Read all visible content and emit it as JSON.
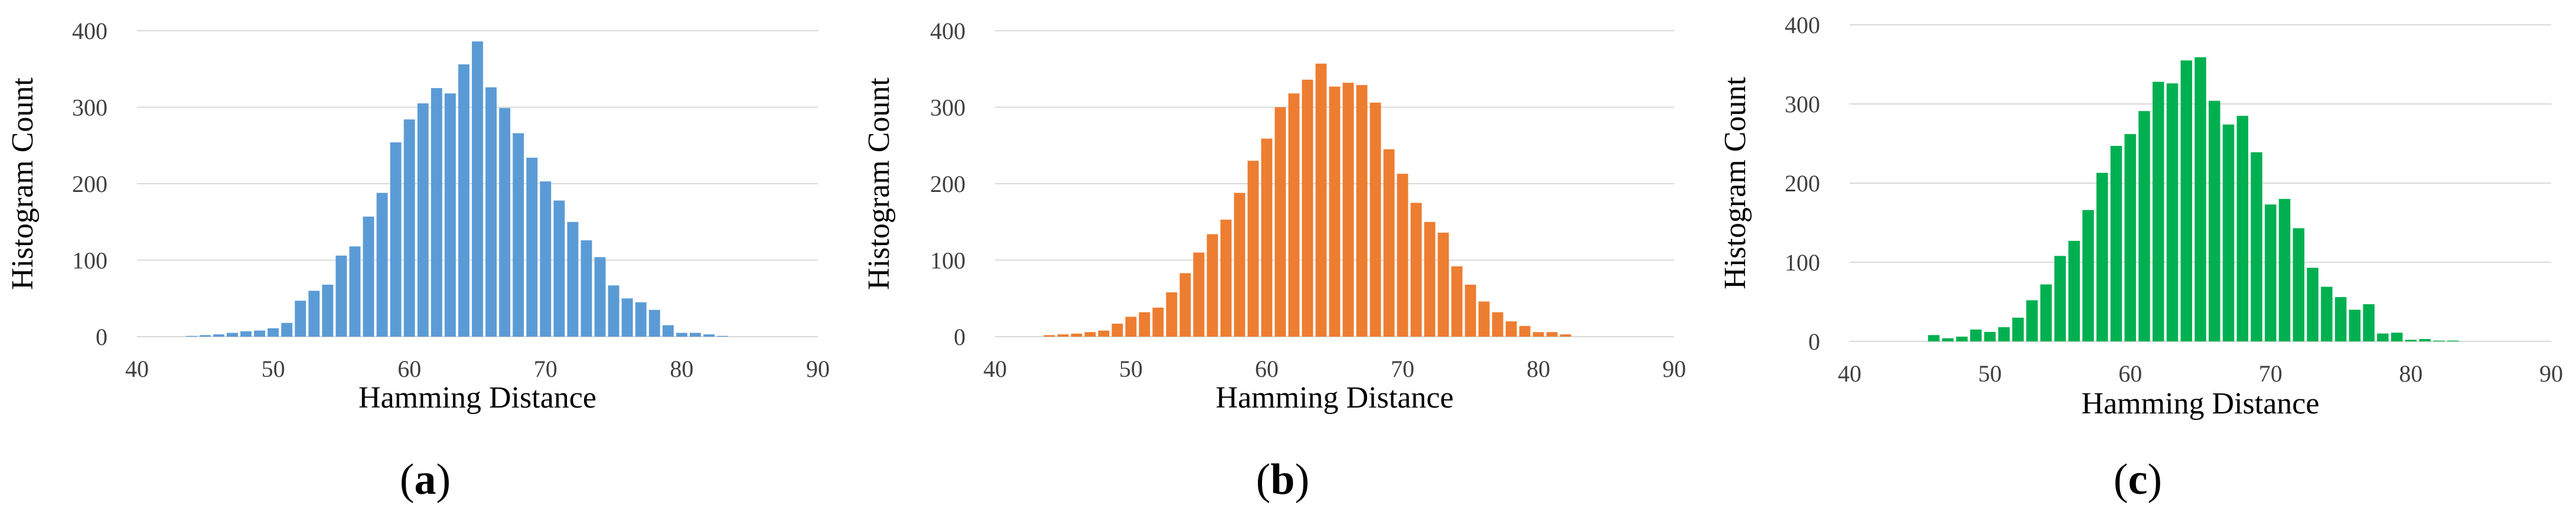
{
  "chart_data": [
    {
      "type": "bar",
      "panel_label": "a",
      "xlabel": "Hamming Distance",
      "ylabel": "Histogram Count",
      "xlim": [
        40,
        90
      ],
      "ylim": [
        0,
        400
      ],
      "xticks": [
        40,
        50,
        60,
        70,
        80,
        90
      ],
      "yticks": [
        0,
        100,
        200,
        300,
        400
      ],
      "grid": true,
      "color": "#5B9BD5",
      "x": [
        44,
        45,
        46,
        47,
        48,
        49,
        50,
        51,
        52,
        53,
        54,
        55,
        56,
        57,
        58,
        59,
        60,
        61,
        62,
        63,
        64,
        65,
        66,
        67,
        68,
        69,
        70,
        71,
        72,
        73,
        74,
        75,
        76,
        77,
        78,
        79,
        80,
        81,
        82,
        83
      ],
      "values": [
        1,
        2,
        3,
        5,
        7,
        8,
        11,
        18,
        47,
        60,
        68,
        106,
        118,
        157,
        188,
        254,
        284,
        305,
        325,
        318,
        356,
        386,
        326,
        299,
        266,
        234,
        203,
        178,
        150,
        126,
        104,
        67,
        50,
        45,
        35,
        15,
        5,
        5,
        3,
        1
      ]
    },
    {
      "type": "bar",
      "panel_label": "b",
      "xlabel": "Hamming Distance",
      "ylabel": "Histogram Count",
      "xlim": [
        40,
        90
      ],
      "ylim": [
        0,
        400
      ],
      "xticks": [
        40,
        50,
        60,
        70,
        80,
        90
      ],
      "yticks": [
        0,
        100,
        200,
        300,
        400
      ],
      "grid": true,
      "color": "#ED7D31",
      "x": [
        44,
        45,
        46,
        47,
        48,
        49,
        50,
        51,
        52,
        53,
        54,
        55,
        56,
        57,
        58,
        59,
        60,
        61,
        62,
        63,
        64,
        65,
        66,
        67,
        68,
        69,
        70,
        71,
        72,
        73,
        74,
        75,
        76,
        77,
        78,
        79,
        80,
        81,
        82
      ],
      "values": [
        2,
        3,
        4,
        6,
        8,
        17,
        26,
        32,
        38,
        58,
        83,
        110,
        134,
        153,
        188,
        230,
        259,
        300,
        318,
        336,
        357,
        327,
        332,
        329,
        306,
        245,
        213,
        175,
        150,
        136,
        92,
        68,
        46,
        32,
        20,
        14,
        6,
        6,
        3
      ]
    },
    {
      "type": "bar",
      "panel_label": "c",
      "xlabel": "Hamming Distance",
      "ylabel": "Histogram Count",
      "xlim": [
        40,
        90
      ],
      "ylim": [
        0,
        400
      ],
      "xticks": [
        40,
        50,
        60,
        70,
        80,
        90
      ],
      "yticks": [
        0,
        100,
        200,
        300,
        400
      ],
      "grid": true,
      "color": "#00B050",
      "x": [
        46,
        47,
        48,
        49,
        50,
        51,
        52,
        53,
        54,
        55,
        56,
        57,
        58,
        59,
        60,
        61,
        62,
        63,
        64,
        65,
        66,
        67,
        68,
        69,
        70,
        71,
        72,
        73,
        74,
        75,
        76,
        77,
        78,
        79,
        80,
        81,
        82,
        83
      ],
      "values": [
        8,
        4,
        6,
        15,
        12,
        18,
        30,
        52,
        72,
        108,
        127,
        166,
        213,
        247,
        262,
        291,
        328,
        326,
        355,
        359,
        304,
        274,
        285,
        239,
        173,
        180,
        143,
        93,
        69,
        56,
        40,
        47,
        10,
        11,
        2,
        3,
        1,
        1
      ]
    }
  ],
  "captions": [
    "a",
    "b",
    "c"
  ]
}
